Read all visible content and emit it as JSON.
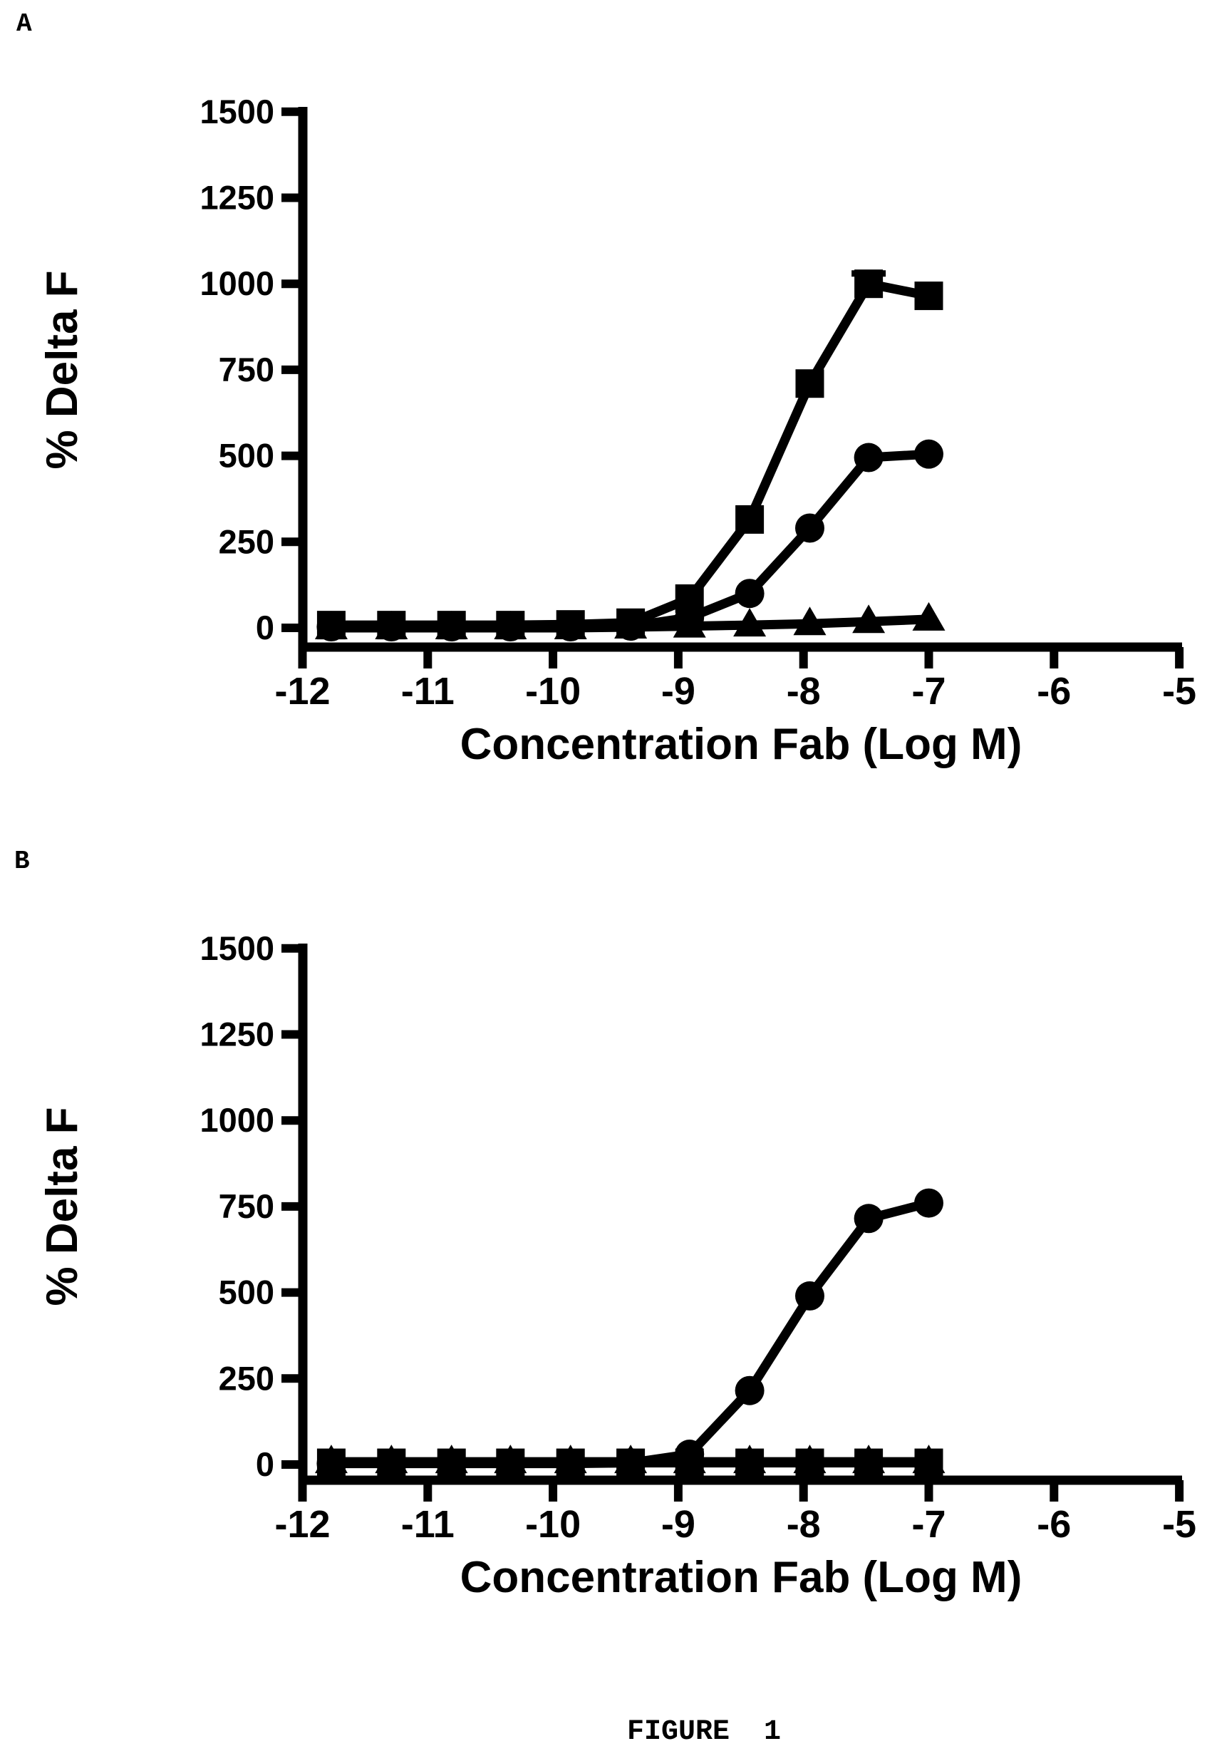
{
  "page": {
    "background": "#ffffff",
    "ink": "#000000"
  },
  "panels": [
    {
      "label": "A"
    },
    {
      "label": "B"
    }
  ],
  "caption": "FIGURE 1",
  "chart_data": [
    {
      "panel": "A",
      "type": "line",
      "title": "",
      "xlabel": "Concentration Fab (Log M)",
      "ylabel": "% Delta F",
      "xlim": [
        -12,
        -5
      ],
      "ylim": [
        0,
        1500
      ],
      "grid": false,
      "legend": "none",
      "x_ticks": [
        -12,
        -11,
        -10,
        -9,
        -8,
        -7,
        -6,
        -5
      ],
      "y_ticks": [
        0,
        250,
        500,
        750,
        1000,
        1250,
        1500
      ],
      "x": [
        -11.77,
        -11.29,
        -10.81,
        -10.34,
        -9.86,
        -9.38,
        -8.91,
        -8.43,
        -7.95,
        -7.48,
        -7.0
      ],
      "series": [
        {
          "name": "filled-triangles",
          "marker": "triangle",
          "color": "#000000",
          "values": [
            0,
            0,
            0,
            0,
            0,
            2,
            5,
            8,
            12,
            18,
            25
          ]
        },
        {
          "name": "filled-circles",
          "marker": "circle",
          "color": "#000000",
          "values": [
            3,
            3,
            3,
            3,
            3,
            5,
            30,
            100,
            290,
            495,
            505
          ]
        },
        {
          "name": "filled-squares",
          "marker": "square",
          "color": "#000000",
          "values": [
            8,
            8,
            8,
            8,
            10,
            15,
            85,
            315,
            710,
            1000,
            965
          ],
          "err_up": [
            0,
            0,
            0,
            0,
            0,
            0,
            0,
            0,
            0,
            30,
            0
          ]
        }
      ]
    },
    {
      "panel": "B",
      "type": "line",
      "title": "",
      "xlabel": "Concentration Fab (Log M)",
      "ylabel": "% Delta F",
      "xlim": [
        -12,
        -5
      ],
      "ylim": [
        0,
        1500
      ],
      "grid": false,
      "legend": "none",
      "x_ticks": [
        -12,
        -11,
        -10,
        -9,
        -8,
        -7,
        -6,
        -5
      ],
      "y_ticks": [
        0,
        250,
        500,
        750,
        1000,
        1250,
        1500
      ],
      "x": [
        -11.77,
        -11.29,
        -10.81,
        -10.34,
        -9.86,
        -9.38,
        -8.91,
        -8.43,
        -7.95,
        -7.48,
        -7.0
      ],
      "series": [
        {
          "name": "filled-triangles",
          "marker": "triangle",
          "color": "#000000",
          "values": [
            8,
            8,
            8,
            8,
            8,
            8,
            8,
            8,
            8,
            8,
            8
          ]
        },
        {
          "name": "filled-circles",
          "marker": "circle",
          "color": "#000000",
          "values": [
            3,
            3,
            3,
            3,
            3,
            5,
            30,
            215,
            490,
            715,
            760
          ]
        },
        {
          "name": "filled-squares",
          "marker": "square",
          "color": "#000000",
          "values": [
            5,
            5,
            5,
            5,
            5,
            5,
            5,
            5,
            5,
            5,
            5
          ]
        }
      ]
    }
  ]
}
